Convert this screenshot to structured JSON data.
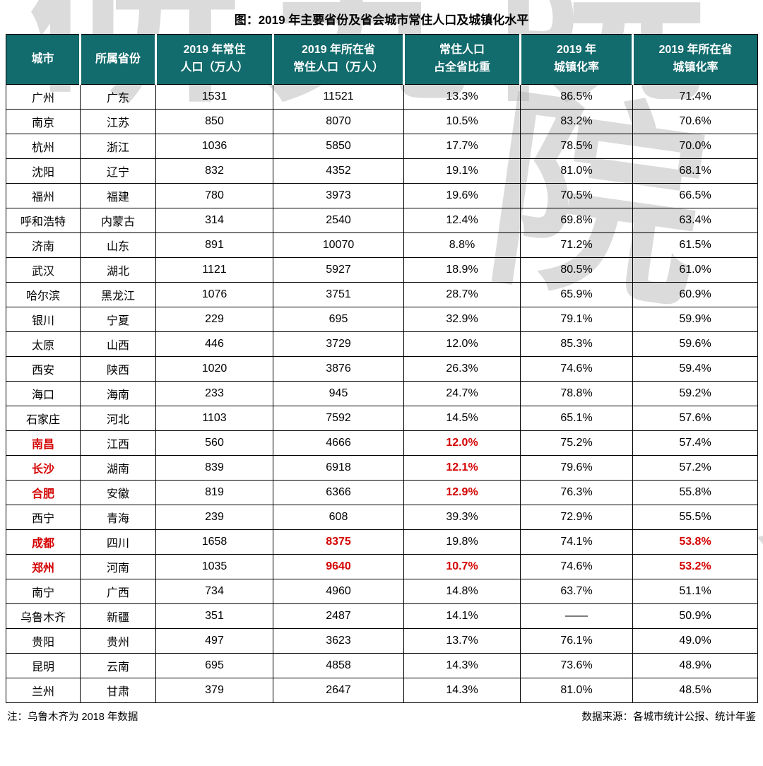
{
  "title": "图：2019 年主要省份及省会城市常住人口及城镇化水平",
  "watermark": {
    "text": "研究院"
  },
  "colors": {
    "header_bg": "#126b6d",
    "highlight_red": "#d40000",
    "border": "#000000",
    "header_text": "#ffffff"
  },
  "chart_data": {
    "type": "table",
    "title": "图：2019 年主要省份及省会城市常住人口及城镇化水平",
    "columns": [
      {
        "lines": [
          "城市"
        ]
      },
      {
        "lines": [
          "所属省份"
        ]
      },
      {
        "lines": [
          "2019 年常住",
          "人口（万人）"
        ]
      },
      {
        "lines": [
          "2019 年所在省",
          "常住人口（万人）"
        ]
      },
      {
        "lines": [
          "常住人口",
          "占全省比重"
        ]
      },
      {
        "lines": [
          "2019 年",
          "城镇化率"
        ]
      },
      {
        "lines": [
          "2019 年所在省",
          "城镇化率"
        ]
      }
    ],
    "rows": [
      {
        "cells": [
          "广州",
          "广东",
          "1531",
          "11521",
          "13.3%",
          "86.5%",
          "71.4%"
        ],
        "red_cells": []
      },
      {
        "cells": [
          "南京",
          "江苏",
          "850",
          "8070",
          "10.5%",
          "83.2%",
          "70.6%"
        ],
        "red_cells": []
      },
      {
        "cells": [
          "杭州",
          "浙江",
          "1036",
          "5850",
          "17.7%",
          "78.5%",
          "70.0%"
        ],
        "red_cells": []
      },
      {
        "cells": [
          "沈阳",
          "辽宁",
          "832",
          "4352",
          "19.1%",
          "81.0%",
          "68.1%"
        ],
        "red_cells": []
      },
      {
        "cells": [
          "福州",
          "福建",
          "780",
          "3973",
          "19.6%",
          "70.5%",
          "66.5%"
        ],
        "red_cells": []
      },
      {
        "cells": [
          "呼和浩特",
          "内蒙古",
          "314",
          "2540",
          "12.4%",
          "69.8%",
          "63.4%"
        ],
        "red_cells": []
      },
      {
        "cells": [
          "济南",
          "山东",
          "891",
          "10070",
          "8.8%",
          "71.2%",
          "61.5%"
        ],
        "red_cells": []
      },
      {
        "cells": [
          "武汉",
          "湖北",
          "1121",
          "5927",
          "18.9%",
          "80.5%",
          "61.0%"
        ],
        "red_cells": []
      },
      {
        "cells": [
          "哈尔滨",
          "黑龙江",
          "1076",
          "3751",
          "28.7%",
          "65.9%",
          "60.9%"
        ],
        "red_cells": []
      },
      {
        "cells": [
          "银川",
          "宁夏",
          "229",
          "695",
          "32.9%",
          "79.1%",
          "59.9%"
        ],
        "red_cells": []
      },
      {
        "cells": [
          "太原",
          "山西",
          "446",
          "3729",
          "12.0%",
          "85.3%",
          "59.6%"
        ],
        "red_cells": []
      },
      {
        "cells": [
          "西安",
          "陕西",
          "1020",
          "3876",
          "26.3%",
          "74.6%",
          "59.4%"
        ],
        "red_cells": []
      },
      {
        "cells": [
          "海口",
          "海南",
          "233",
          "945",
          "24.7%",
          "78.8%",
          "59.2%"
        ],
        "red_cells": []
      },
      {
        "cells": [
          "石家庄",
          "河北",
          "1103",
          "7592",
          "14.5%",
          "65.1%",
          "57.6%"
        ],
        "red_cells": []
      },
      {
        "cells": [
          "南昌",
          "江西",
          "560",
          "4666",
          "12.0%",
          "75.2%",
          "57.4%"
        ],
        "red_cells": [
          0,
          4
        ]
      },
      {
        "cells": [
          "长沙",
          "湖南",
          "839",
          "6918",
          "12.1%",
          "79.6%",
          "57.2%"
        ],
        "red_cells": [
          0,
          4
        ]
      },
      {
        "cells": [
          "合肥",
          "安徽",
          "819",
          "6366",
          "12.9%",
          "76.3%",
          "55.8%"
        ],
        "red_cells": [
          0,
          4
        ]
      },
      {
        "cells": [
          "西宁",
          "青海",
          "239",
          "608",
          "39.3%",
          "72.9%",
          "55.5%"
        ],
        "red_cells": []
      },
      {
        "cells": [
          "成都",
          "四川",
          "1658",
          "8375",
          "19.8%",
          "74.1%",
          "53.8%"
        ],
        "red_cells": [
          0,
          3,
          6
        ]
      },
      {
        "cells": [
          "郑州",
          "河南",
          "1035",
          "9640",
          "10.7%",
          "74.6%",
          "53.2%"
        ],
        "red_cells": [
          0,
          3,
          4,
          6
        ]
      },
      {
        "cells": [
          "南宁",
          "广西",
          "734",
          "4960",
          "14.8%",
          "63.7%",
          "51.1%"
        ],
        "red_cells": []
      },
      {
        "cells": [
          "乌鲁木齐",
          "新疆",
          "351",
          "2487",
          "14.1%",
          "——",
          "50.9%"
        ],
        "red_cells": []
      },
      {
        "cells": [
          "贵阳",
          "贵州",
          "497",
          "3623",
          "13.7%",
          "76.1%",
          "49.0%"
        ],
        "red_cells": []
      },
      {
        "cells": [
          "昆明",
          "云南",
          "695",
          "4858",
          "14.3%",
          "73.6%",
          "48.9%"
        ],
        "red_cells": []
      },
      {
        "cells": [
          "兰州",
          "甘肃",
          "379",
          "2647",
          "14.3%",
          "81.0%",
          "48.5%"
        ],
        "red_cells": []
      }
    ]
  },
  "footnotes": {
    "left": "注：乌鲁木齐为 2018 年数据",
    "right": "数据来源：各城市统计公报、统计年鉴"
  }
}
